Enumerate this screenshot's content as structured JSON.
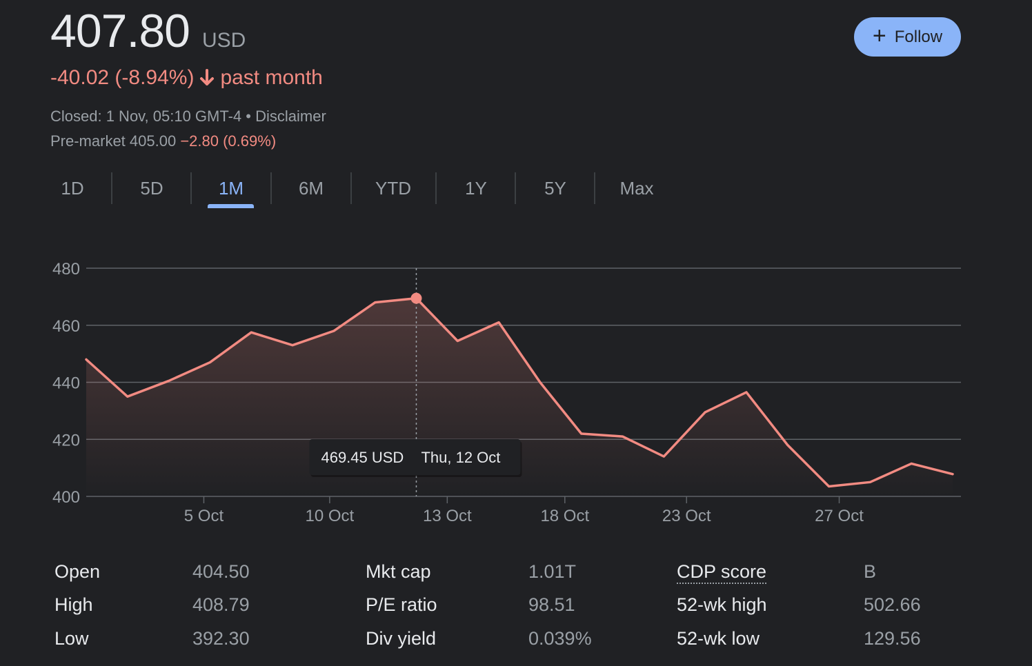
{
  "quote": {
    "price": "407.80",
    "currency": "USD",
    "change": "-40.02 (-8.94%)",
    "period": "past month",
    "closed_text": "Closed: 1 Nov, 05:10 GMT-4",
    "separator": " • ",
    "disclaimer": "Disclaimer",
    "premarket_label": "Pre-market 405.00",
    "premarket_change": "−2.80 (0.69%)"
  },
  "follow_button": {
    "label": "Follow",
    "icon": "plus-icon",
    "color": "#8ab4f8"
  },
  "range_tabs": {
    "items": [
      "1D",
      "5D",
      "1M",
      "6M",
      "YTD",
      "1Y",
      "5Y",
      "Max"
    ],
    "selected": "1M"
  },
  "colors": {
    "background": "#202124",
    "negative": "#f28b82",
    "accent": "#8ab4f8",
    "muted": "#9aa0a6"
  },
  "chart_data": {
    "type": "area",
    "x_ticks": [
      "5 Oct",
      "10 Oct",
      "13 Oct",
      "18 Oct",
      "23 Oct",
      "27 Oct"
    ],
    "y_ticks": [
      480,
      460,
      440,
      420,
      400
    ],
    "ylim": [
      400,
      480
    ],
    "grid": true,
    "series": [
      {
        "values": [
          448,
          435,
          440.5,
          447,
          457.5,
          453,
          458,
          468,
          469.45,
          454.5,
          461,
          440,
          422,
          421,
          414,
          429.5,
          436.5,
          418,
          403.5,
          405,
          411.5,
          407.8
        ],
        "color": "#f28b82"
      }
    ],
    "highlight": {
      "index": 8,
      "value_label": "469.45 USD",
      "date_label": "Thu, 12 Oct"
    }
  },
  "stats": {
    "col1": [
      {
        "label": "Open",
        "value": "404.50"
      },
      {
        "label": "High",
        "value": "408.79"
      },
      {
        "label": "Low",
        "value": "392.30"
      }
    ],
    "col2": [
      {
        "label": "Mkt cap",
        "value": "1.01T"
      },
      {
        "label": "P/E ratio",
        "value": "98.51"
      },
      {
        "label": "Div yield",
        "value": "0.039%"
      }
    ],
    "col3": [
      {
        "label": "CDP score",
        "value": "B"
      },
      {
        "label": "52-wk high",
        "value": "502.66"
      },
      {
        "label": "52-wk low",
        "value": "129.56"
      }
    ]
  }
}
